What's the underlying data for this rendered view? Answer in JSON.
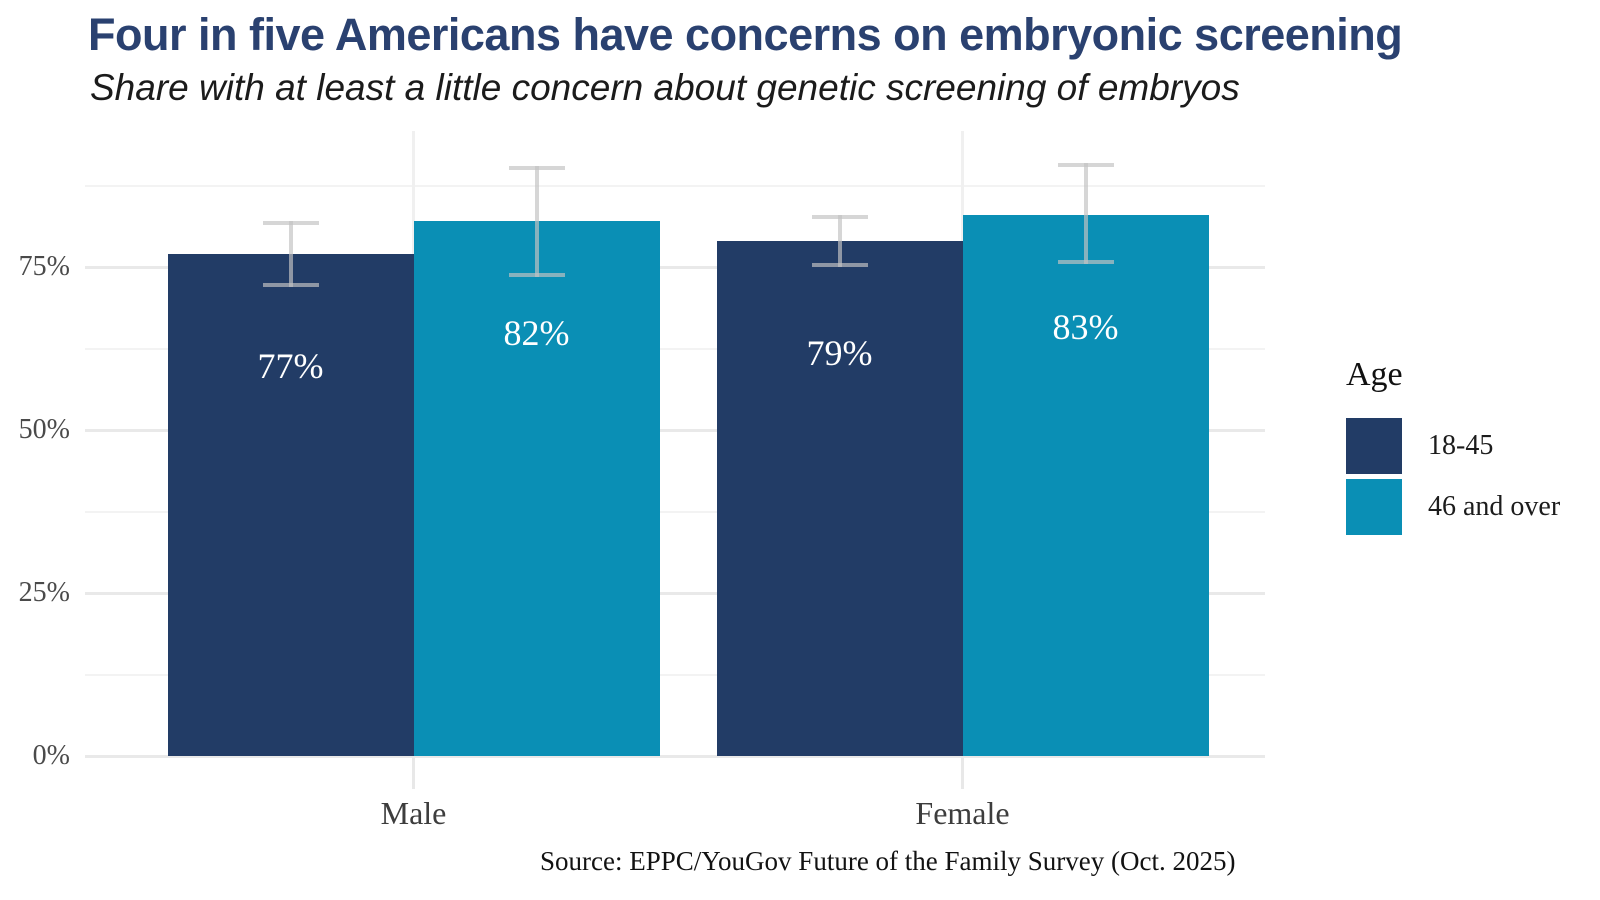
{
  "header": {
    "title": "Four in five Americans have concerns on embryonic screening",
    "subtitle": "Share with at least a little concern about genetic screening of embryos"
  },
  "source_note": "Source: EPPC/YouGov Future of the Family Survey (Oct. 2025)",
  "colors": {
    "title_text": "#2a4170",
    "navy": "#223c66",
    "teal": "#0a8fb5",
    "error_bar": "rgba(195,195,195,0.68)",
    "grid_major": "#e9e9e9",
    "grid_minor": "#f3f3f3"
  },
  "legend": {
    "title": "Age",
    "items": [
      {
        "label": "18-45",
        "color": "#223c66"
      },
      {
        "label": "46 and over",
        "color": "#0a8fb5"
      }
    ]
  },
  "chart_data": {
    "type": "bar",
    "title": "Four in five Americans have concerns on embryonic screening",
    "subtitle": "Share with at least a little concern about genetic screening of embryos",
    "categories": [
      "Male",
      "Female"
    ],
    "series": [
      {
        "name": "18-45",
        "color": "#223c66",
        "values": [
          77,
          79
        ],
        "labels": [
          "77%",
          "79%"
        ],
        "error_low": [
          72,
          75
        ],
        "error_high": [
          82,
          83
        ]
      },
      {
        "name": "46 and over",
        "color": "#0a8fb5",
        "values": [
          82,
          83
        ],
        "labels": [
          "82%",
          "83%"
        ],
        "error_low": [
          73.5,
          75.5
        ],
        "error_high": [
          90.5,
          91
        ]
      }
    ],
    "ylabel": "",
    "xlabel": "",
    "ylim": [
      0,
      96
    ],
    "y_ticks_major": [
      0,
      25,
      50,
      75
    ],
    "y_ticks_minor": [
      12.5,
      37.5,
      62.5,
      87.5
    ],
    "y_tick_labels": [
      "0%",
      "25%",
      "50%",
      "75%"
    ],
    "grid": "on",
    "legend_position": "right",
    "legend_title": "Age"
  }
}
